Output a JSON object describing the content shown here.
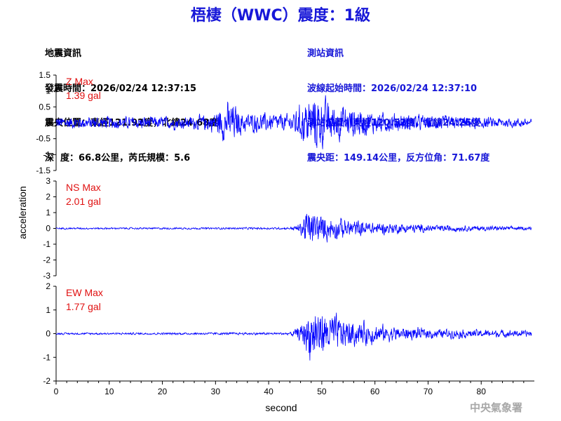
{
  "title": "梧棲（WWC）震度：1級",
  "quake_info": {
    "heading": "地震資訊",
    "origin_time": "發震時間：2026/02/24 12:37:15",
    "epicenter": "震央位置：東經121.92度，北緯24.68度",
    "depth_magnitude": "深  度：66.8公里，芮氏規模：5.6"
  },
  "station_info": {
    "heading": "測站資訊",
    "wave_start": "波線起始時間：2026/02/24 12:37:10",
    "location": "測站位置：東經120.52度，北緯24.26度",
    "distance_azimuth": "震央距：149.14公里，反方位角：71.67度"
  },
  "agency": "中央氣象署",
  "chart_data": [
    {
      "type": "line",
      "component": "Z",
      "max_label": "Z Max",
      "max_value": "1.39 gal",
      "ylim": [
        -1.5,
        1.5
      ],
      "yticks": [
        "1.5",
        "1",
        "0.5",
        "0",
        "-0.5",
        "-1",
        "-1.5"
      ],
      "envelope": [
        {
          "t": 0,
          "amp": 0.3
        },
        {
          "t": 10,
          "amp": 0.3
        },
        {
          "t": 25,
          "amp": 0.3
        },
        {
          "t": 29,
          "amp": 0.4
        },
        {
          "t": 31,
          "amp": 0.8
        },
        {
          "t": 33,
          "amp": 1.0
        },
        {
          "t": 35,
          "amp": 0.5
        },
        {
          "t": 44,
          "amp": 0.4
        },
        {
          "t": 47,
          "amp": 1.1
        },
        {
          "t": 49,
          "amp": 1.39
        },
        {
          "t": 52,
          "amp": 0.9
        },
        {
          "t": 60,
          "amp": 0.5
        },
        {
          "t": 70,
          "amp": 0.35
        },
        {
          "t": 90,
          "amp": 0.2
        }
      ]
    },
    {
      "type": "line",
      "component": "NS",
      "max_label": "NS Max",
      "max_value": "2.01 gal",
      "ylim": [
        -3,
        3
      ],
      "yticks": [
        "3",
        "2",
        "1",
        "0",
        "-1",
        "-2",
        "-3"
      ],
      "envelope": [
        {
          "t": 0,
          "amp": 0.08
        },
        {
          "t": 44,
          "amp": 0.1
        },
        {
          "t": 46,
          "amp": 0.5
        },
        {
          "t": 47,
          "amp": 2.0
        },
        {
          "t": 49,
          "amp": 1.4
        },
        {
          "t": 53,
          "amp": 1.0
        },
        {
          "t": 60,
          "amp": 0.6
        },
        {
          "t": 70,
          "amp": 0.35
        },
        {
          "t": 90,
          "amp": 0.15
        }
      ]
    },
    {
      "type": "line",
      "component": "EW",
      "max_label": "EW Max",
      "max_value": "1.77 gal",
      "ylim": [
        -2,
        2
      ],
      "yticks": [
        "2",
        "1",
        "0",
        "-1",
        "-2"
      ],
      "envelope": [
        {
          "t": 0,
          "amp": 0.06
        },
        {
          "t": 44,
          "amp": 0.08
        },
        {
          "t": 46,
          "amp": 0.5
        },
        {
          "t": 48,
          "amp": 1.77
        },
        {
          "t": 51,
          "amp": 1.3
        },
        {
          "t": 55,
          "amp": 0.9
        },
        {
          "t": 62,
          "amp": 0.5
        },
        {
          "t": 72,
          "amp": 0.3
        },
        {
          "t": 90,
          "amp": 0.2
        }
      ]
    }
  ],
  "xaxis": {
    "xlabel": "second",
    "xlim": [
      0,
      90
    ],
    "xticks": [
      "0",
      "10",
      "20",
      "30",
      "40",
      "50",
      "60",
      "70",
      "80"
    ]
  },
  "ylabel": "acceleration",
  "colors": {
    "trace": "#0000ff",
    "max_label": "#e01010",
    "title": "#1818d8"
  }
}
